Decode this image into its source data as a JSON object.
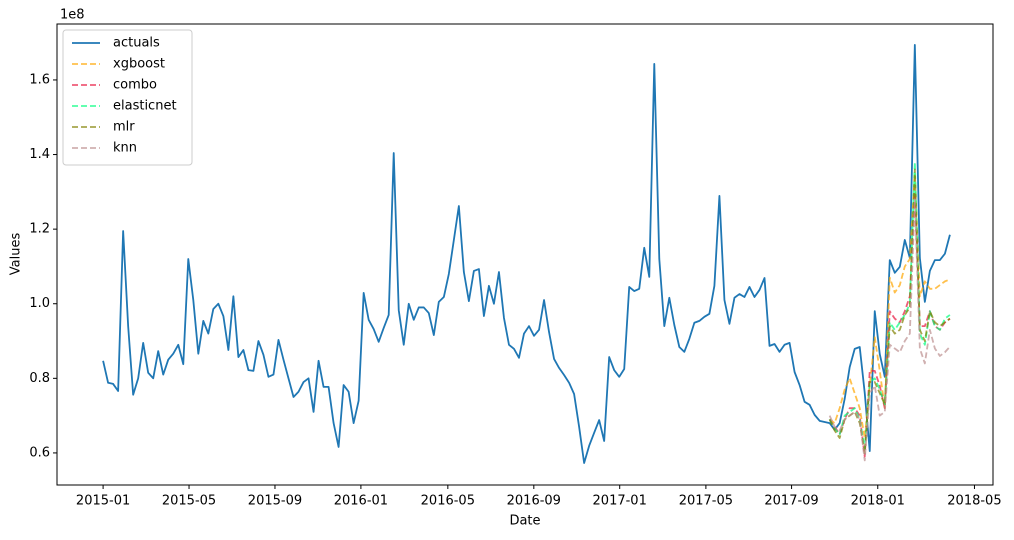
{
  "chart_data": {
    "type": "line",
    "xlabel": "Date",
    "ylabel": "Values",
    "y_offset_label": "1e8",
    "legend": "upper left",
    "alpha": 0.7,
    "xlim": [
      -9.2,
      177.6
    ],
    "ylim": [
      0.514,
      1.75
    ],
    "xticks": [
      {
        "value": 0,
        "label": "2015-01"
      },
      {
        "value": 17.15,
        "label": "2015-05"
      },
      {
        "value": 34.3,
        "label": "2015-09"
      },
      {
        "value": 51.45,
        "label": "2016-01"
      },
      {
        "value": 68.8,
        "label": "2016-05"
      },
      {
        "value": 85.96,
        "label": "2016-09"
      },
      {
        "value": 103.1,
        "label": "2017-01"
      },
      {
        "value": 120.3,
        "label": "2017-05"
      },
      {
        "value": 137.4,
        "label": "2017-09"
      },
      {
        "value": 154.6,
        "label": "2018-01"
      },
      {
        "value": 173.9,
        "label": "2018-05"
      }
    ],
    "yticks": [
      0.6,
      0.8,
      {
        "value": 1,
        "label": "1.0"
      },
      1.2,
      1.4,
      1.6
    ],
    "series": [
      {
        "name": "actuals",
        "color": "#1f77b4",
        "linestyle": "solid",
        "x": [
          0,
          1,
          2,
          3,
          4,
          5,
          6,
          7,
          8,
          9,
          10,
          11,
          12,
          13,
          14,
          15,
          16,
          17,
          18,
          19,
          20,
          21,
          22,
          23,
          24,
          25,
          26,
          27,
          28,
          29,
          30,
          31,
          32,
          33,
          34,
          35,
          36,
          37,
          38,
          39,
          40,
          41,
          42,
          43,
          44,
          45,
          46,
          47,
          48,
          49,
          50,
          51,
          52,
          53,
          54,
          55,
          56,
          57,
          58,
          59,
          60,
          61,
          62,
          63,
          64,
          65,
          66,
          67,
          68,
          69,
          70,
          71,
          72,
          73,
          74,
          75,
          76,
          77,
          78,
          79,
          80,
          81,
          82,
          83,
          84,
          85,
          86,
          87,
          88,
          89,
          90,
          91,
          92,
          93,
          94,
          95,
          96,
          97,
          98,
          99,
          100,
          101,
          102,
          103,
          104,
          105,
          106,
          107,
          108,
          109,
          110,
          111,
          112,
          113,
          114,
          115,
          116,
          117,
          118,
          119,
          120,
          121,
          122,
          123,
          124,
          125,
          126,
          127,
          128,
          129,
          130,
          131,
          132,
          133,
          134,
          135,
          136,
          137,
          138,
          139,
          140,
          141,
          142,
          143,
          144,
          145,
          146,
          147,
          148,
          149,
          150,
          151,
          152,
          153,
          154,
          155,
          156,
          157,
          158,
          159,
          160,
          161,
          162,
          163,
          164,
          165,
          166,
          167,
          168,
          169
        ],
        "values": [
          0.847,
          0.788,
          0.785,
          0.766,
          1.195,
          0.94,
          0.756,
          0.8,
          0.895,
          0.815,
          0.8,
          0.873,
          0.81,
          0.85,
          0.866,
          0.89,
          0.838,
          1.12,
          1.01,
          0.866,
          0.954,
          0.92,
          0.986,
          1.0,
          0.967,
          0.876,
          1.02,
          0.857,
          0.876,
          0.822,
          0.82,
          0.9,
          0.863,
          0.804,
          0.81,
          0.903,
          0.85,
          0.8,
          0.75,
          0.764,
          0.79,
          0.8,
          0.71,
          0.847,
          0.777,
          0.777,
          0.68,
          0.616,
          0.782,
          0.764,
          0.68,
          0.74,
          1.029,
          0.957,
          0.932,
          0.898,
          0.935,
          0.97,
          1.404,
          0.983,
          0.89,
          1.0,
          0.957,
          0.99,
          0.99,
          0.975,
          0.916,
          1.005,
          1.018,
          1.08,
          1.171,
          1.262,
          1.085,
          1.007,
          1.088,
          1.093,
          0.967,
          1.048,
          1.0,
          1.085,
          0.962,
          0.89,
          0.879,
          0.855,
          0.92,
          0.94,
          0.914,
          0.93,
          1.01,
          0.924,
          0.852,
          0.828,
          0.809,
          0.788,
          0.758,
          0.67,
          0.573,
          0.619,
          0.654,
          0.688,
          0.632,
          0.857,
          0.822,
          0.804,
          0.825,
          1.045,
          1.034,
          1.04,
          1.15,
          1.072,
          1.643,
          1.12,
          0.94,
          1.016,
          0.943,
          0.884,
          0.871,
          0.906,
          0.949,
          0.954,
          0.965,
          0.973,
          1.048,
          1.289,
          1.01,
          0.946,
          1.016,
          1.026,
          1.018,
          1.045,
          1.018,
          1.037,
          1.069,
          0.887,
          0.892,
          0.871,
          0.89,
          0.895,
          0.817,
          0.782,
          0.737,
          0.729,
          0.702,
          0.686,
          0.683,
          0.68,
          0.662,
          0.68,
          0.745,
          0.83,
          0.879,
          0.884,
          0.761,
          0.605,
          0.98,
          0.865,
          0.804,
          1.117,
          1.083,
          1.099,
          1.171,
          1.123,
          1.694,
          1.123,
          1.005,
          1.088,
          1.117,
          1.117,
          1.134,
          1.185
        ]
      },
      {
        "name": "xgboost",
        "color": "#ffa500",
        "linestyle": "dashed",
        "x": [
          145,
          146,
          147,
          148,
          149,
          150,
          151,
          152,
          153,
          154,
          155,
          156,
          157,
          158,
          159,
          160,
          161,
          162,
          163,
          164,
          165,
          166,
          167,
          168,
          169
        ],
        "values": [
          0.69,
          0.68,
          0.72,
          0.77,
          0.8,
          0.76,
          0.72,
          0.64,
          0.78,
          0.91,
          0.82,
          0.72,
          1.07,
          1.03,
          1.05,
          1.1,
          1.12,
          1.35,
          1.02,
          1.06,
          1.04,
          1.04,
          1.05,
          1.06,
          1.065
        ]
      },
      {
        "name": "combo",
        "color": "#e8173f",
        "linestyle": "dashed",
        "x": [
          145,
          146,
          147,
          148,
          149,
          150,
          151,
          152,
          153,
          154,
          155,
          156,
          157,
          158,
          159,
          160,
          161,
          162,
          163,
          164,
          165,
          166,
          167,
          168,
          169
        ],
        "values": [
          0.69,
          0.67,
          0.65,
          0.69,
          0.72,
          0.72,
          0.7,
          0.59,
          0.82,
          0.82,
          0.78,
          0.72,
          0.98,
          0.96,
          0.95,
          0.98,
          1.02,
          1.3,
          0.94,
          0.94,
          0.98,
          0.94,
          0.93,
          0.95,
          0.96
        ]
      },
      {
        "name": "elasticnet",
        "color": "#00ff7f",
        "linestyle": "dashed",
        "x": [
          145,
          146,
          147,
          148,
          149,
          150,
          151,
          152,
          153,
          154,
          155,
          156,
          157,
          158,
          159,
          160,
          161,
          162,
          163,
          164,
          165,
          166,
          167,
          168,
          169
        ],
        "values": [
          0.69,
          0.665,
          0.65,
          0.7,
          0.71,
          0.72,
          0.69,
          0.61,
          0.79,
          0.8,
          0.77,
          0.73,
          0.95,
          0.93,
          0.95,
          0.97,
          1.0,
          1.38,
          0.92,
          0.89,
          0.98,
          0.94,
          0.93,
          0.96,
          0.97
        ]
      },
      {
        "name": "mlr",
        "color": "#808000",
        "linestyle": "dashed",
        "x": [
          145,
          146,
          147,
          148,
          149,
          150,
          151,
          152,
          153,
          154,
          155,
          156,
          157,
          158,
          159,
          160,
          161,
          162,
          163,
          164,
          165,
          166,
          167,
          168,
          169
        ],
        "values": [
          0.69,
          0.66,
          0.64,
          0.69,
          0.7,
          0.71,
          0.68,
          0.6,
          0.79,
          0.79,
          0.76,
          0.73,
          0.94,
          0.92,
          0.93,
          0.97,
          0.99,
          1.36,
          0.93,
          0.9,
          0.98,
          0.95,
          0.94,
          0.95,
          0.96
        ]
      },
      {
        "name": "knn",
        "color": "#bc8f8f",
        "linestyle": "dashed",
        "x": [
          145,
          146,
          147,
          148,
          149,
          150,
          151,
          152,
          153,
          154,
          155,
          156,
          157,
          158,
          159,
          160,
          161,
          162,
          163,
          164,
          165,
          166,
          167,
          168,
          169
        ],
        "values": [
          0.7,
          0.67,
          0.66,
          0.69,
          0.7,
          0.71,
          0.69,
          0.58,
          0.76,
          0.78,
          0.7,
          0.71,
          0.89,
          0.88,
          0.87,
          0.9,
          0.92,
          1.28,
          0.88,
          0.84,
          0.93,
          0.88,
          0.86,
          0.87,
          0.885
        ]
      }
    ]
  }
}
